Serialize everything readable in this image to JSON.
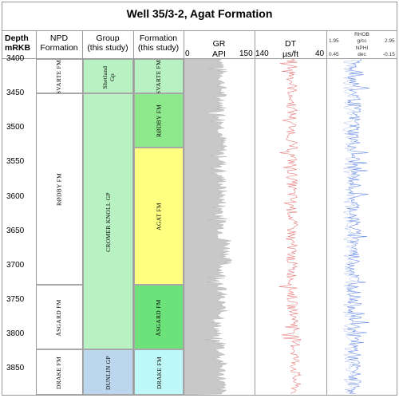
{
  "title": "Well 35/3-2, Agat Formation",
  "headers": {
    "depth": [
      "Depth",
      "mRKB"
    ],
    "npd": [
      "NPD",
      "Formation"
    ],
    "group": [
      "Group",
      "(this study)"
    ],
    "formation": [
      "Formation",
      "(this study)"
    ],
    "gr": {
      "name": "GR",
      "unit": "API",
      "min": "0",
      "max": "150"
    },
    "dt": {
      "name": "DT",
      "unit": "µs/ft",
      "min": "140",
      "max": "40"
    },
    "rhob": {
      "name": "RHOB",
      "unit": "g/cc",
      "min": "1.95",
      "max": "2.95"
    },
    "nphi": {
      "name": "NPHI",
      "unit": "dec",
      "min": "0.45",
      "max": "-0.15"
    }
  },
  "depths": [
    "3400",
    "3450",
    "3500",
    "3550",
    "3600",
    "3650",
    "3700",
    "3750",
    "3800",
    "3850"
  ],
  "depth_range": [
    3400,
    3888
  ],
  "npd_zones": [
    {
      "label": "SVARTE FM",
      "top": 3400,
      "base": 3450
    },
    {
      "label": "RØDBY FM",
      "top": 3450,
      "base": 3728
    },
    {
      "label": "ÅSGARD FM",
      "top": 3728,
      "base": 3822
    },
    {
      "label": "DRAKE FM",
      "top": 3822,
      "base": 3888
    }
  ],
  "group_zones": [
    {
      "label": "Shetland Gp",
      "top": 3400,
      "base": 3450,
      "color": "#b9f2c2"
    },
    {
      "label": "CROMER KNOLL GP",
      "top": 3450,
      "base": 3822,
      "color": "#b9f2c2"
    },
    {
      "label": "DUNLIN GP",
      "top": 3822,
      "base": 3888,
      "color": "#bcd6ee"
    }
  ],
  "formation_zones": [
    {
      "label": "SVARTE FM",
      "top": 3400,
      "base": 3450,
      "color": "#b9f2c2"
    },
    {
      "label": "RØDBY FM",
      "top": 3450,
      "base": 3529,
      "color": "#8ee88c"
    },
    {
      "label": "AGAT FM",
      "top": 3529,
      "base": 3728,
      "color": "#ffff80"
    },
    {
      "label": "ÅSGARD FM",
      "top": 3728,
      "base": 3822,
      "color": "#6ee27a"
    },
    {
      "label": "DRAKE FM",
      "top": 3822,
      "base": 3888,
      "color": "#bff8f8"
    }
  ],
  "log_colors": {
    "gr": "#c8c8c8",
    "dt": "#e77a7a",
    "rhob": "#6b8ee6",
    "nphi": "#9bb0ee"
  }
}
